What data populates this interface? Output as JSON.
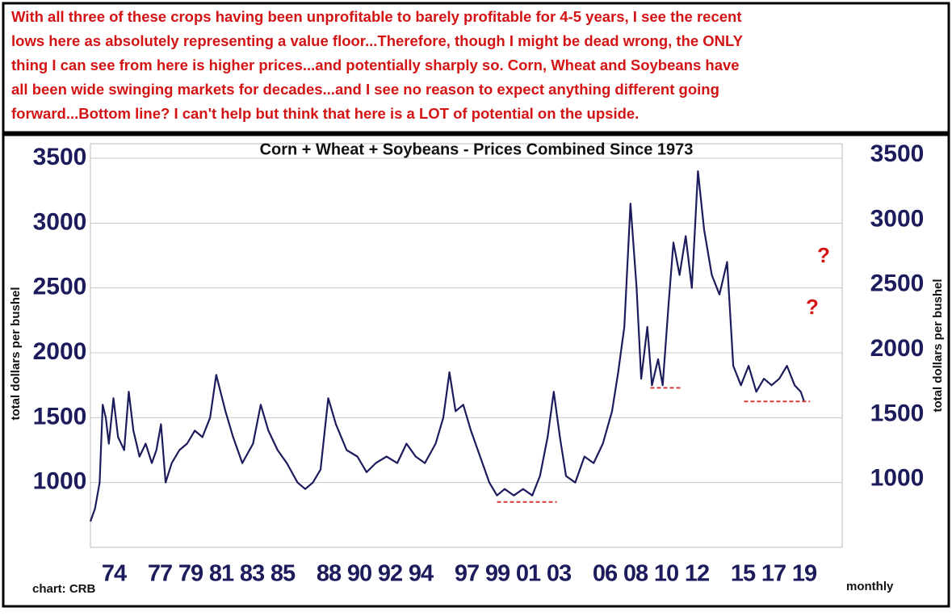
{
  "note_lines": [
    "With all three of these crops having been unprofitable to barely profitable for 4-5 years, I see the recent",
    "lows here as absolutely representing a value floor...Therefore, though I might be dead wrong, the ONLY",
    "thing I can see from here is higher prices...and potentially sharply so. Corn, Wheat and Soybeans have",
    "all been wide swinging markets for decades...and I see no reason to expect anything different going",
    "forward...Bottom line? I can't help but think that here is a LOT of potential on the upside."
  ],
  "chart_data": {
    "type": "line",
    "title": "Corn + Wheat + Soybeans - Prices Combined Since 1973",
    "ylabel": "total dollars per bushel",
    "source": "chart: CRB",
    "frequency": "monthly",
    "color": "#1c1c5c",
    "grid": true,
    "ylim": [
      500,
      3500
    ],
    "yticks": [
      1000,
      1500,
      2000,
      2500,
      3000,
      3500
    ],
    "xlim": [
      1973,
      2022
    ],
    "xticks": [
      {
        "value": 1974,
        "label": "74"
      },
      {
        "value": 1977,
        "label": "77"
      },
      {
        "value": 1979,
        "label": "79"
      },
      {
        "value": 1981,
        "label": "81"
      },
      {
        "value": 1983,
        "label": "83"
      },
      {
        "value": 1985,
        "label": "85"
      },
      {
        "value": 1988,
        "label": "88"
      },
      {
        "value": 1990,
        "label": "90"
      },
      {
        "value": 1992,
        "label": "92"
      },
      {
        "value": 1994,
        "label": "94"
      },
      {
        "value": 1997,
        "label": "97"
      },
      {
        "value": 1999,
        "label": "99"
      },
      {
        "value": 2001,
        "label": "01"
      },
      {
        "value": 2003,
        "label": "03"
      },
      {
        "value": 2006,
        "label": "06"
      },
      {
        "value": 2008,
        "label": "08"
      },
      {
        "value": 2010,
        "label": "10"
      },
      {
        "value": 2012,
        "label": "12"
      },
      {
        "value": 2015,
        "label": "15"
      },
      {
        "value": 2017,
        "label": "17"
      },
      {
        "value": 2019,
        "label": "19"
      }
    ],
    "x": [
      1973.0,
      1973.3,
      1973.6,
      1973.8,
      1974.0,
      1974.2,
      1974.5,
      1974.8,
      1975.2,
      1975.5,
      1975.8,
      1976.2,
      1976.6,
      1977.0,
      1977.3,
      1977.6,
      1977.9,
      1978.3,
      1978.8,
      1979.3,
      1979.8,
      1980.3,
      1980.8,
      1981.2,
      1981.8,
      1982.3,
      1982.9,
      1983.6,
      1984.1,
      1984.6,
      1985.2,
      1985.8,
      1986.5,
      1987.0,
      1987.5,
      1988.0,
      1988.5,
      1989.0,
      1989.7,
      1990.4,
      1991.0,
      1991.6,
      1992.3,
      1993.0,
      1993.6,
      1994.2,
      1994.8,
      1995.5,
      1996.0,
      1996.4,
      1996.8,
      1997.3,
      1997.8,
      1998.4,
      1999.0,
      1999.5,
      2000.0,
      2000.6,
      2001.2,
      2001.8,
      2002.3,
      2002.8,
      2003.2,
      2003.6,
      2004.0,
      2004.6,
      2005.2,
      2005.8,
      2006.4,
      2007.0,
      2007.4,
      2007.8,
      2008.2,
      2008.6,
      2008.9,
      2009.3,
      2009.6,
      2010.0,
      2010.3,
      2010.7,
      2011.0,
      2011.4,
      2011.8,
      2012.2,
      2012.6,
      2013.0,
      2013.5,
      2014.0,
      2014.5,
      2014.9,
      2015.4,
      2015.9,
      2016.4,
      2016.9,
      2017.4,
      2017.9,
      2018.4,
      2018.9,
      2019.3,
      2019.5
    ],
    "values": [
      700,
      800,
      1000,
      1600,
      1500,
      1300,
      1650,
      1350,
      1250,
      1700,
      1400,
      1200,
      1300,
      1150,
      1250,
      1450,
      1000,
      1150,
      1250,
      1300,
      1400,
      1350,
      1500,
      1830,
      1550,
      1350,
      1150,
      1300,
      1600,
      1400,
      1250,
      1150,
      1000,
      950,
      1000,
      1100,
      1650,
      1450,
      1250,
      1200,
      1080,
      1150,
      1200,
      1150,
      1300,
      1200,
      1150,
      1300,
      1500,
      1850,
      1550,
      1600,
      1400,
      1200,
      1000,
      900,
      950,
      900,
      950,
      900,
      1050,
      1350,
      1700,
      1350,
      1050,
      1000,
      1200,
      1150,
      1300,
      1550,
      1850,
      2200,
      3150,
      2500,
      1800,
      2200,
      1750,
      1950,
      1750,
      2400,
      2850,
      2600,
      2900,
      2500,
      3400,
      2950,
      2600,
      2450,
      2700,
      1900,
      1750,
      1900,
      1700,
      1800,
      1750,
      1800,
      1900,
      1750,
      1700,
      1630
    ],
    "support_lines": [
      {
        "from": 1999.5,
        "to": 2003.4,
        "value": 850
      },
      {
        "from": 2009.5,
        "to": 2011.5,
        "value": 1730
      },
      {
        "from": 2015.6,
        "to": 2019.9,
        "value": 1625
      }
    ],
    "support_color": "#d43c3c",
    "annotations": [
      "?",
      "?"
    ]
  }
}
